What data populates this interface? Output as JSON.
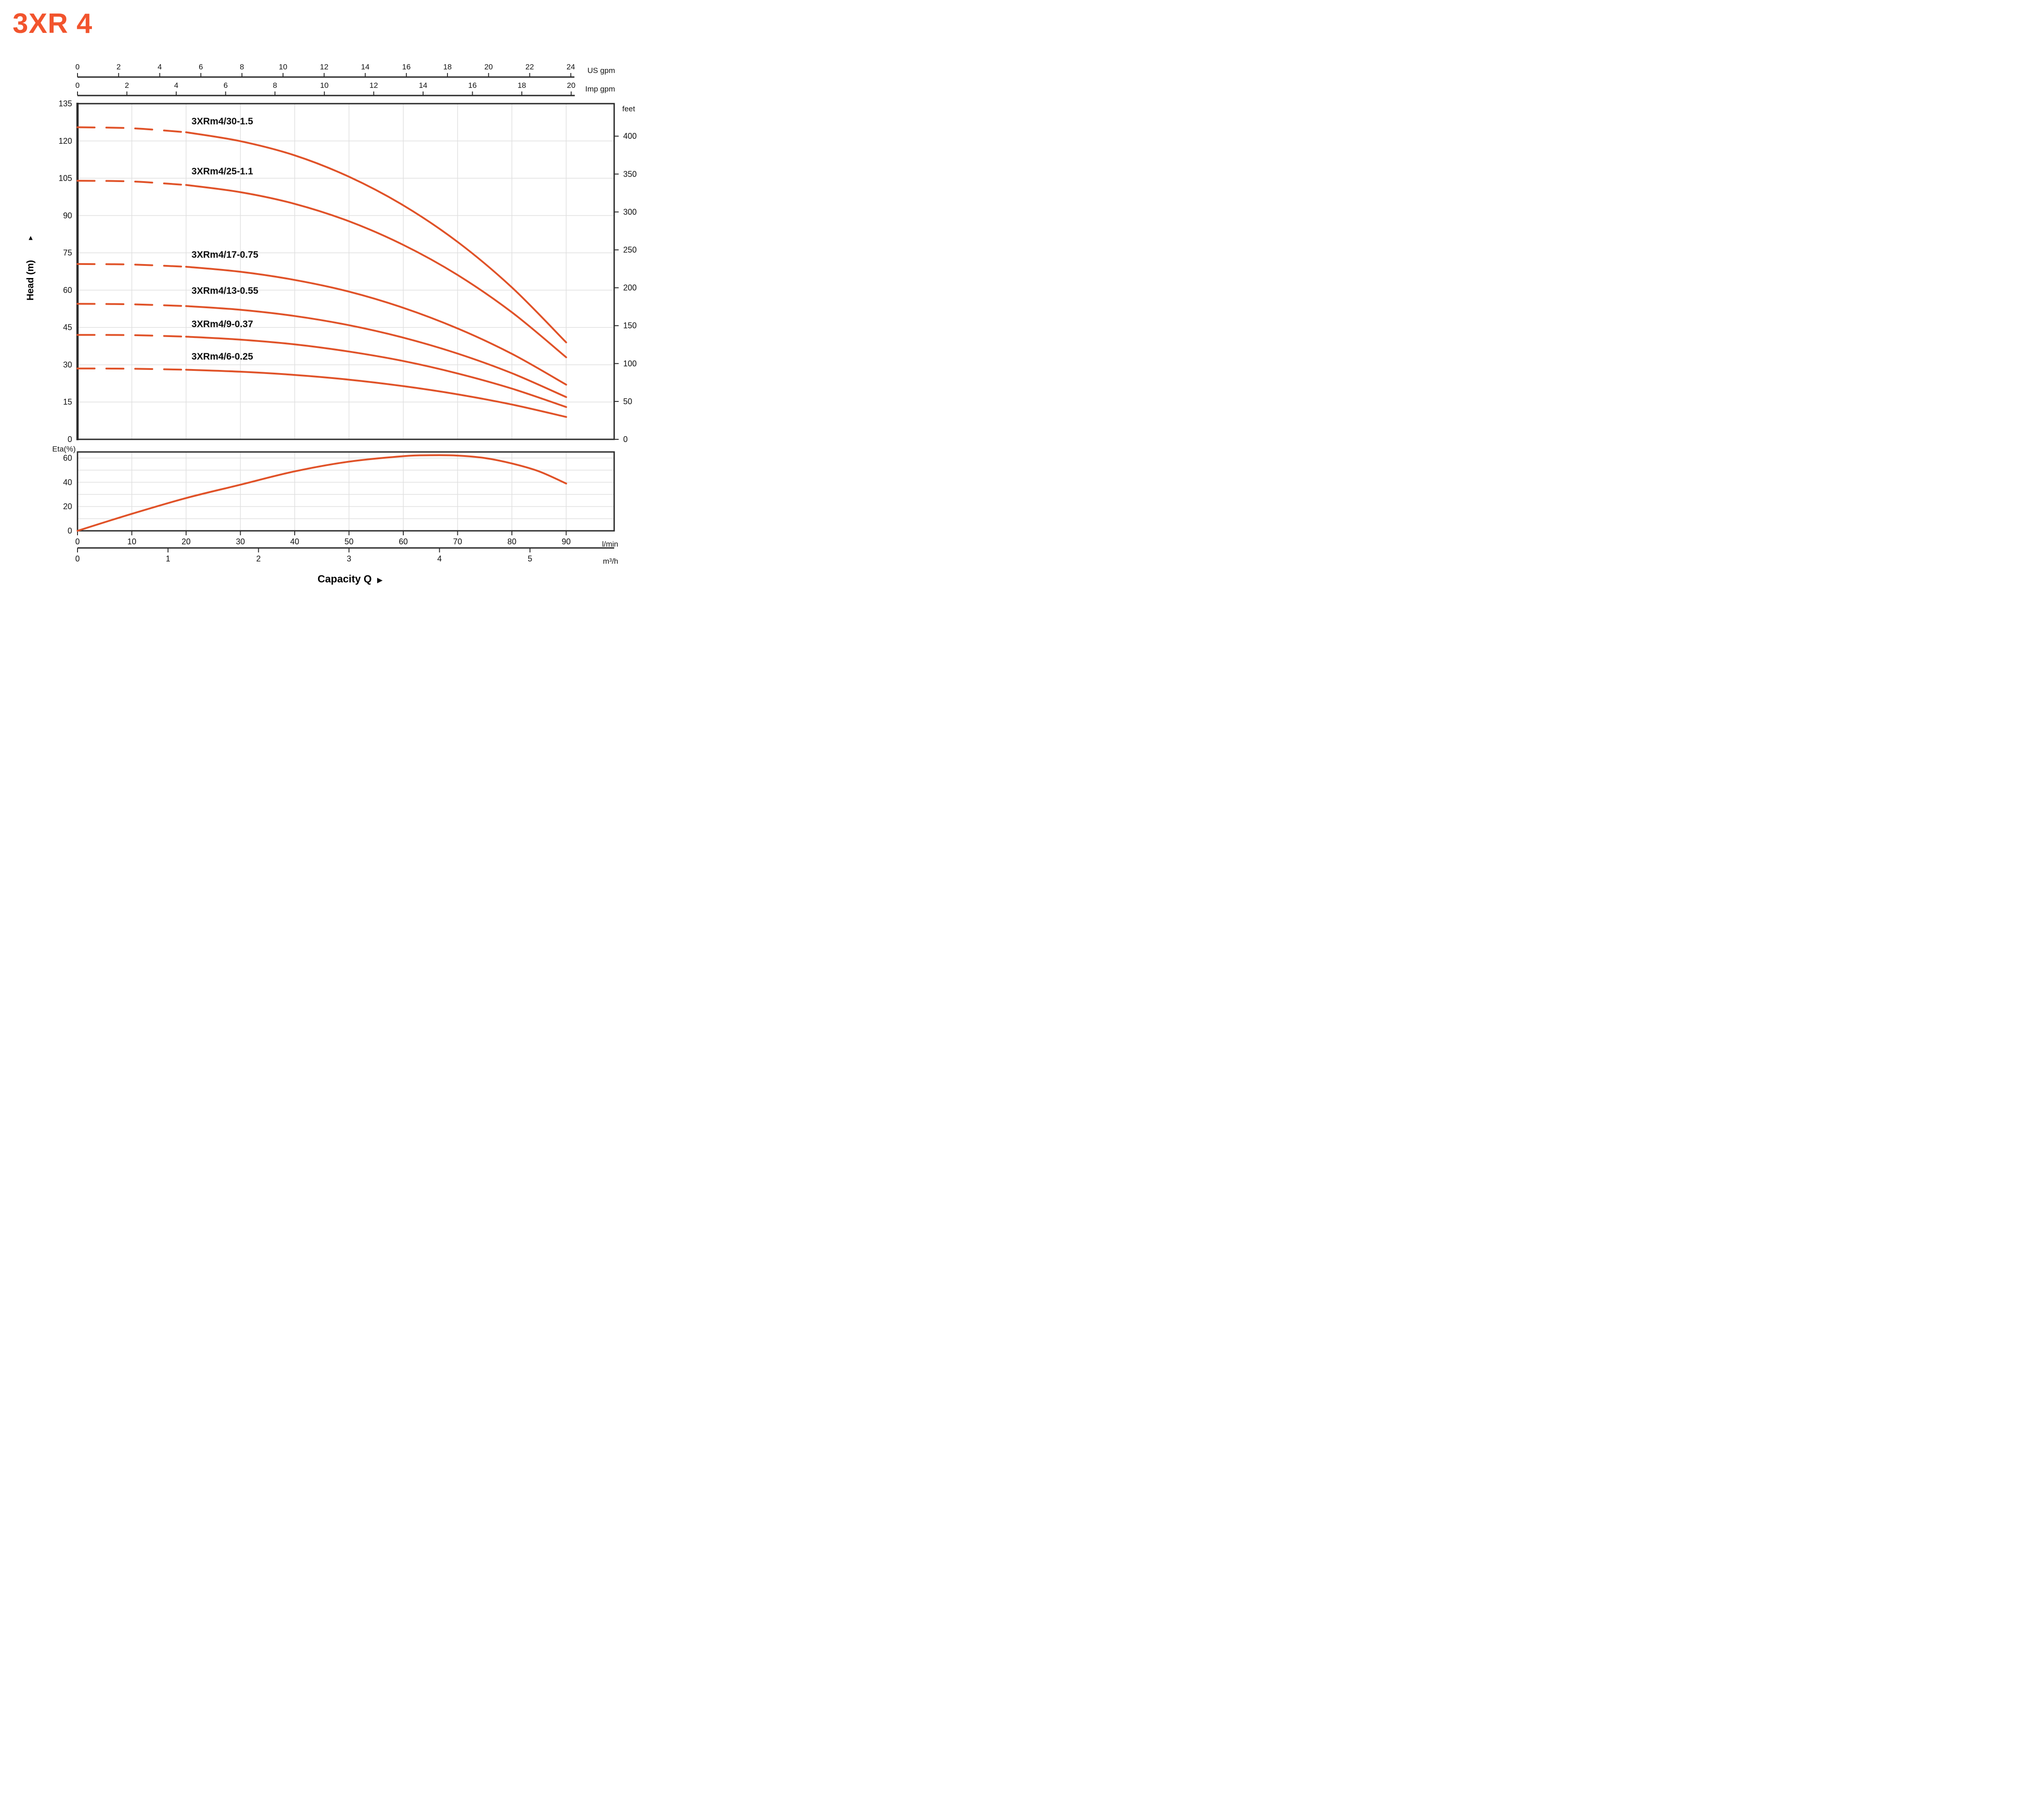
{
  "title": "3XR 4",
  "footer": {
    "label": "Capacity Q",
    "arrow": "▶"
  },
  "bottom_axes": {
    "lmin": {
      "unit": "l/min",
      "ticks": [
        0,
        10,
        20,
        30,
        40,
        50,
        60,
        70,
        80,
        90
      ]
    },
    "m3h": {
      "unit": "m³/h",
      "ticks": [
        0,
        1,
        2,
        3,
        4,
        5
      ],
      "lmin_per_unit": 16.667
    }
  },
  "colors": {
    "curve": "#e05228",
    "title": "#f2542d",
    "axis": "#2a2a2a",
    "grid": "#e0e0e0",
    "text": "#111111"
  },
  "chart_data": [
    {
      "type": "line",
      "id": "head-capacity",
      "title": "Head vs Capacity curves",
      "x_unit": "l/min",
      "x_range_lmin": [
        0,
        99
      ],
      "grid_x_step_lmin": 10,
      "x_axes": {
        "us_gpm": {
          "unit": "US gpm",
          "ticks": [
            0,
            2,
            4,
            6,
            8,
            10,
            12,
            14,
            16,
            18,
            20,
            22,
            24
          ],
          "lmin_per_unit": 3.7854
        },
        "imp_gpm": {
          "unit": "Imp gpm",
          "ticks": [
            0,
            2,
            4,
            6,
            8,
            10,
            12,
            14,
            16,
            18,
            20
          ],
          "lmin_per_unit": 4.5461
        }
      },
      "y_axis_left": {
        "label": "Head (m)",
        "arrow": "▲",
        "ticks": [
          0,
          15,
          30,
          45,
          60,
          75,
          90,
          105,
          120,
          135
        ],
        "max": 135,
        "grid_step": 15
      },
      "y_axis_right": {
        "unit": "feet",
        "ticks": [
          0,
          50,
          100,
          150,
          200,
          250,
          300,
          350,
          400
        ],
        "m_per_foot": 0.3048
      },
      "series": [
        {
          "label": "3XRm4/30-1.5",
          "dashed_until_lmin": 20,
          "label_at": {
            "q": 21,
            "h": 127.5
          },
          "points_lmin_m": [
            [
              0,
              125.5
            ],
            [
              10,
              125.1
            ],
            [
              20,
              123.5
            ],
            [
              30,
              119.9
            ],
            [
              40,
              114.2
            ],
            [
              50,
              105.6
            ],
            [
              60,
              94.1
            ],
            [
              70,
              79.4
            ],
            [
              80,
              61.1
            ],
            [
              90,
              39
            ]
          ]
        },
        {
          "label": "3XRm4/25-1.1",
          "dashed_until_lmin": 20,
          "label_at": {
            "q": 21,
            "h": 107.5
          },
          "points_lmin_m": [
            [
              0,
              104
            ],
            [
              10,
              103.7
            ],
            [
              20,
              102.3
            ],
            [
              30,
              99.4
            ],
            [
              40,
              94.7
            ],
            [
              50,
              87.7
            ],
            [
              60,
              78.2
            ],
            [
              70,
              66.1
            ],
            [
              80,
              51.1
            ],
            [
              90,
              33
            ]
          ]
        },
        {
          "label": "3XRm4/17-0.75",
          "dashed_until_lmin": 20,
          "label_at": {
            "q": 21,
            "h": 74
          },
          "points_lmin_m": [
            [
              0,
              70.5
            ],
            [
              10,
              70.3
            ],
            [
              20,
              69.4
            ],
            [
              30,
              67.4
            ],
            [
              40,
              64.1
            ],
            [
              50,
              59.4
            ],
            [
              60,
              52.9
            ],
            [
              70,
              44.6
            ],
            [
              80,
              34.4
            ],
            [
              90,
              22
            ]
          ]
        },
        {
          "label": "3XRm4/13-0.55",
          "dashed_until_lmin": 20,
          "label_at": {
            "q": 21,
            "h": 59.5
          },
          "points_lmin_m": [
            [
              0,
              54.5
            ],
            [
              10,
              54.3
            ],
            [
              20,
              53.6
            ],
            [
              30,
              52.1
            ],
            [
              40,
              49.6
            ],
            [
              50,
              45.9
            ],
            [
              60,
              40.9
            ],
            [
              70,
              34.5
            ],
            [
              80,
              26.6
            ],
            [
              90,
              17
            ]
          ]
        },
        {
          "label": "3XRm4/9-0.37",
          "dashed_until_lmin": 20,
          "label_at": {
            "q": 21,
            "h": 46
          },
          "points_lmin_m": [
            [
              0,
              42
            ],
            [
              10,
              41.9
            ],
            [
              20,
              41.3
            ],
            [
              30,
              40.1
            ],
            [
              40,
              38.2
            ],
            [
              50,
              35.3
            ],
            [
              60,
              31.5
            ],
            [
              70,
              26.5
            ],
            [
              80,
              20.4
            ],
            [
              90,
              13
            ]
          ]
        },
        {
          "label": "3XRm4/6-0.25",
          "dashed_until_lmin": 20,
          "label_at": {
            "q": 21,
            "h": 33
          },
          "points_lmin_m": [
            [
              0,
              28.5
            ],
            [
              10,
              28.4
            ],
            [
              20,
              28
            ],
            [
              30,
              27.2
            ],
            [
              40,
              25.9
            ],
            [
              50,
              24
            ],
            [
              60,
              21.4
            ],
            [
              70,
              18.1
            ],
            [
              80,
              14
            ],
            [
              90,
              9
            ]
          ]
        }
      ]
    },
    {
      "type": "line",
      "id": "efficiency",
      "title": "Efficiency curve",
      "x_unit": "l/min",
      "x_range_lmin": [
        0,
        99
      ],
      "y_axis": {
        "label": "Eta(%)",
        "ticks_labeled": [
          0,
          20,
          40,
          60
        ],
        "grid_step": 10,
        "max": 65
      },
      "series": [
        {
          "label": "Eta",
          "points_lmin_pct": [
            [
              0,
              0
            ],
            [
              10,
              14
            ],
            [
              20,
              27
            ],
            [
              30,
              38
            ],
            [
              40,
              49
            ],
            [
              50,
              57
            ],
            [
              60,
              61.5
            ],
            [
              65,
              62.3
            ],
            [
              70,
              62
            ],
            [
              75,
              60
            ],
            [
              80,
              55.5
            ],
            [
              85,
              49
            ],
            [
              90,
              39
            ]
          ]
        }
      ]
    }
  ]
}
